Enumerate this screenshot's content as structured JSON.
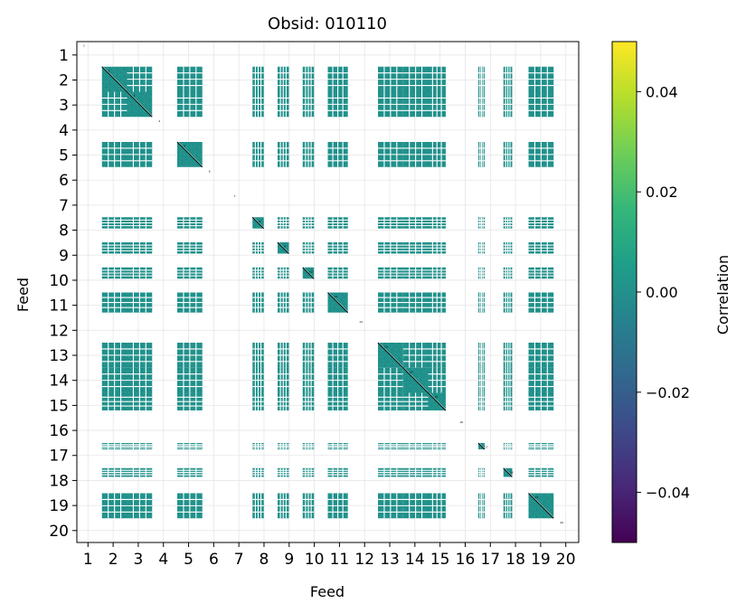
{
  "chart_data": {
    "type": "heatmap",
    "title": "Obsid: 010110",
    "xlabel": "Feed",
    "ylabel": "Feed",
    "feeds": [
      1,
      2,
      3,
      4,
      5,
      6,
      7,
      8,
      9,
      10,
      11,
      12,
      13,
      14,
      15,
      16,
      17,
      18,
      19,
      20
    ],
    "x_tick_labels": [
      "1",
      "2",
      "3",
      "4",
      "5",
      "6",
      "7",
      "8",
      "9",
      "10",
      "11",
      "12",
      "13",
      "14",
      "15",
      "16",
      "17",
      "18",
      "19",
      "20"
    ],
    "y_tick_labels": [
      "1",
      "2",
      "3",
      "4",
      "5",
      "6",
      "7",
      "8",
      "9",
      "10",
      "11",
      "12",
      "13",
      "14",
      "15",
      "16",
      "17",
      "18",
      "19",
      "20"
    ],
    "active_feed_blocks": [
      {
        "feed": 2,
        "fraction": 1.0
      },
      {
        "feed": 3,
        "fraction": 1.0
      },
      {
        "feed": 5,
        "fraction": 1.0
      },
      {
        "feed": 8,
        "fraction": 0.45
      },
      {
        "feed": 9,
        "fraction": 0.45
      },
      {
        "feed": 10,
        "fraction": 0.45
      },
      {
        "feed": 11,
        "fraction": 0.8
      },
      {
        "feed": 13,
        "fraction": 1.0
      },
      {
        "feed": 14,
        "fraction": 1.0
      },
      {
        "feed": 15,
        "fraction": 0.7
      },
      {
        "feed": 17,
        "fraction": 0.25
      },
      {
        "feed": 18,
        "fraction": 0.35
      },
      {
        "feed": 19,
        "fraction": 1.0
      }
    ],
    "diagonal_labels": [
      "1",
      "2",
      "3",
      "4",
      "5",
      "6",
      "7",
      "8",
      "9",
      "10",
      "11",
      "12",
      "13",
      "14",
      "15",
      "16",
      "17",
      "18",
      "19",
      "20"
    ],
    "grid": true,
    "value_range": [
      -0.05,
      0.05
    ],
    "colorbar": {
      "label": "Correlation",
      "ticks": [
        -0.04,
        -0.02,
        0.0,
        0.02,
        0.04
      ],
      "tick_labels": [
        "−0.04",
        "−0.02",
        "0.00",
        "0.02",
        "0.04"
      ],
      "colormap": "viridis",
      "stops": [
        "#440154",
        "#482878",
        "#3e4989",
        "#31688e",
        "#26828e",
        "#1f9e89",
        "#35b779",
        "#6ece58",
        "#b5de2b",
        "#fde725"
      ]
    },
    "cell_color": "#21918c",
    "cell_noise_colors": [
      "#1f8a86",
      "#26a08f",
      "#1d7f7d",
      "#2a9d8f",
      "#218e8b"
    ]
  }
}
